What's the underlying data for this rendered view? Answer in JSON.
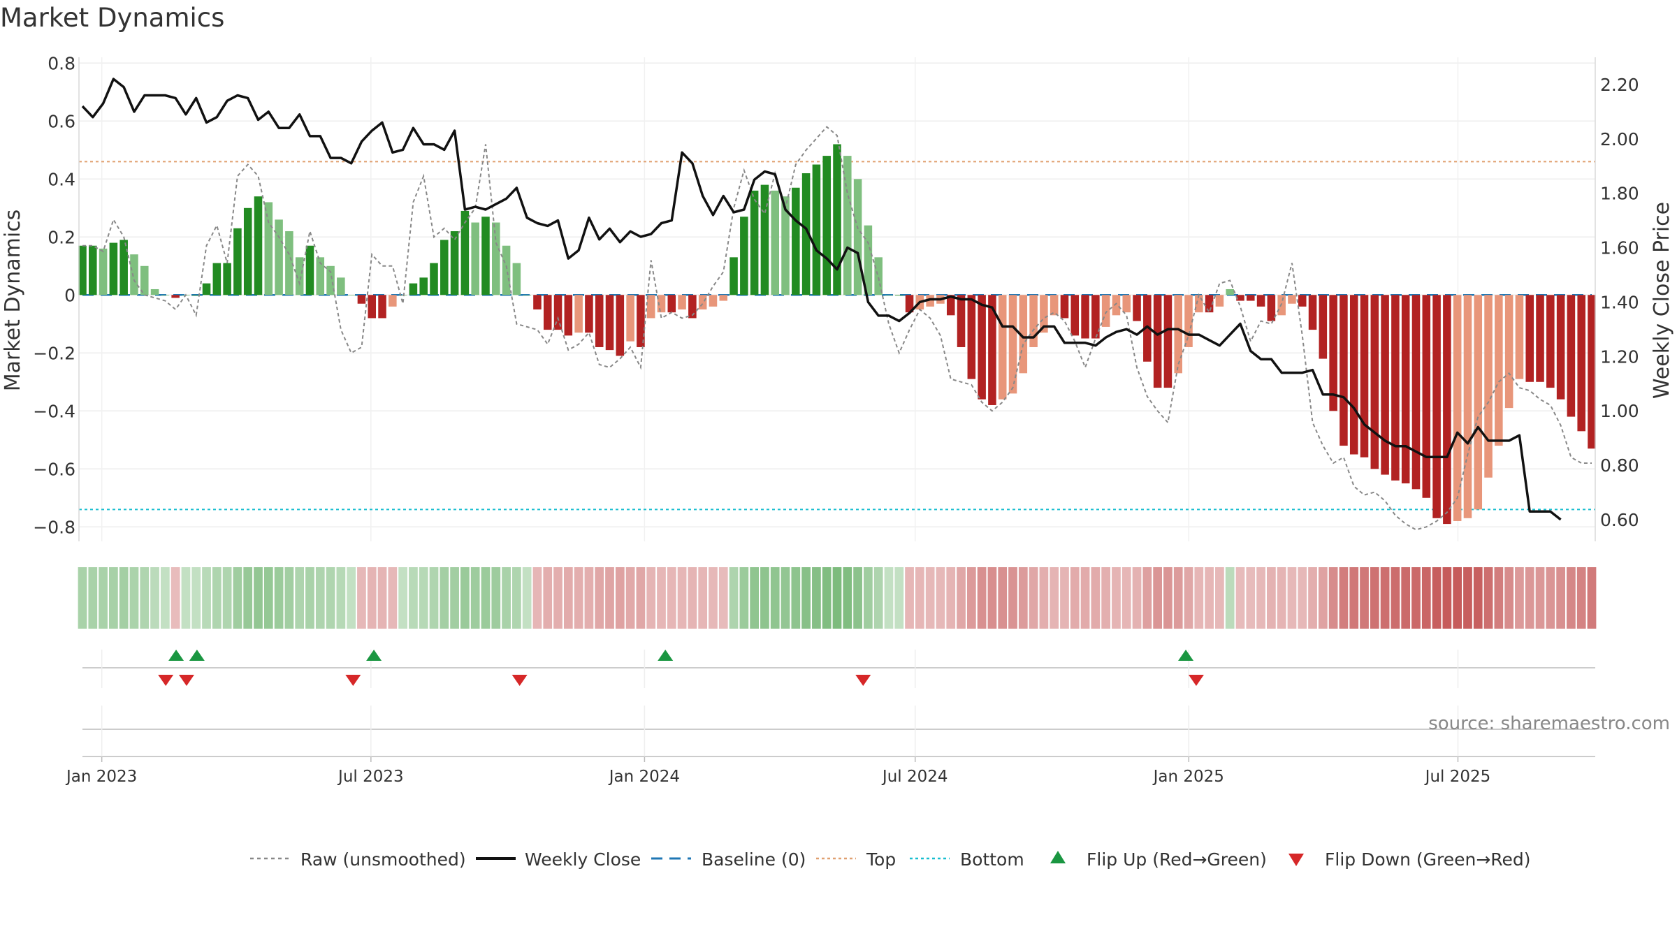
{
  "chart_data": {
    "type": "bar",
    "title": "Market Dynamics",
    "ylabel": "Market Dynamics",
    "ylabel_right": "Weekly Close Price",
    "ylim": [
      -0.85,
      0.82
    ],
    "ylim_right": [
      0.52,
      2.3
    ],
    "yticks": [
      0.8,
      0.6,
      0.4,
      0.2,
      0,
      -0.2,
      -0.4,
      -0.6,
      -0.8
    ],
    "yticks_right": [
      2.2,
      2.0,
      1.8,
      1.6,
      1.4,
      1.2,
      1.0,
      0.8,
      0.6
    ],
    "x_start": "2022-12-19",
    "x_end": "2025-09-29",
    "xticks": [
      "Jan 2023",
      "Jul 2023",
      "Jan 2024",
      "Jul 2024",
      "Jan 2025",
      "Jul 2025"
    ],
    "xtick_dates": [
      "2023-01-01",
      "2023-07-01",
      "2024-01-01",
      "2024-07-01",
      "2025-01-01",
      "2025-07-01"
    ],
    "top_level": 0.46,
    "bottom_level": -0.74,
    "baseline": 0,
    "grid": true,
    "legend_position": "bottom",
    "source": "source: sharemaestro.com",
    "legend": [
      "Raw (unsmoothed)",
      "Weekly Close",
      "Baseline (0)",
      "Top",
      "Bottom",
      "Flip Up (Red→Green)",
      "Flip Down (Green→Red)"
    ],
    "colors": {
      "strong_green": "#228b22",
      "light_green": "#7fbf7f",
      "strong_red": "#b22222",
      "light_red": "#e8967a",
      "close": "#111111",
      "raw": "#888888",
      "baseline": "#1f77b4",
      "top": "#e0a070",
      "bottom": "#17becf",
      "flip_up": "#1a9641",
      "flip_down": "#d62728"
    },
    "series": [
      {
        "name": "Market Dynamics",
        "values": [
          0.17,
          0.17,
          0.16,
          0.18,
          0.19,
          0.14,
          0.1,
          0.02,
          0.0,
          -0.01,
          0.0,
          0.0,
          0.04,
          0.11,
          0.11,
          0.23,
          0.3,
          0.34,
          0.32,
          0.26,
          0.22,
          0.13,
          0.17,
          0.13,
          0.1,
          0.06,
          0.0,
          -0.03,
          -0.08,
          -0.08,
          -0.04,
          0.0,
          0.04,
          0.06,
          0.11,
          0.19,
          0.22,
          0.29,
          0.25,
          0.27,
          0.25,
          0.17,
          0.11,
          0.0,
          -0.05,
          -0.12,
          -0.12,
          -0.14,
          -0.13,
          -0.13,
          -0.18,
          -0.19,
          -0.21,
          -0.16,
          -0.18,
          -0.08,
          -0.06,
          -0.06,
          -0.05,
          -0.08,
          -0.05,
          -0.04,
          -0.02,
          0.13,
          0.27,
          0.36,
          0.38,
          0.36,
          0.34,
          0.37,
          0.42,
          0.45,
          0.48,
          0.52,
          0.48,
          0.4,
          0.24,
          0.13,
          0.0,
          0.0,
          -0.06,
          -0.05,
          -0.04,
          -0.03,
          -0.07,
          -0.18,
          -0.29,
          -0.36,
          -0.38,
          -0.36,
          -0.34,
          -0.27,
          -0.18,
          -0.13,
          -0.07,
          -0.08,
          -0.14,
          -0.15,
          -0.15,
          -0.11,
          -0.07,
          -0.06,
          -0.09,
          -0.23,
          -0.32,
          -0.32,
          -0.27,
          -0.18,
          -0.06,
          -0.06,
          -0.04,
          0.02,
          -0.02,
          -0.02,
          -0.04,
          -0.09,
          -0.07,
          -0.03,
          -0.04,
          -0.12,
          -0.22,
          -0.4,
          -0.52,
          -0.55,
          -0.56,
          -0.6,
          -0.62,
          -0.64,
          -0.65,
          -0.67,
          -0.7,
          -0.77,
          -0.79,
          -0.78,
          -0.77,
          -0.74,
          -0.63,
          -0.52,
          -0.39,
          -0.29,
          -0.3,
          -0.3,
          -0.32,
          -0.36,
          -0.42,
          -0.47,
          -0.53
        ]
      },
      {
        "name": "Raw (unsmoothed)",
        "values": [
          0.17,
          0.17,
          0.15,
          0.26,
          0.2,
          0.05,
          0.0,
          -0.01,
          -0.02,
          -0.05,
          0.0,
          -0.07,
          0.17,
          0.24,
          0.11,
          0.41,
          0.45,
          0.41,
          0.25,
          0.2,
          0.14,
          0.04,
          0.22,
          0.11,
          0.08,
          -0.12,
          -0.2,
          -0.18,
          0.14,
          0.1,
          0.1,
          -0.03,
          0.32,
          0.41,
          0.2,
          0.23,
          0.19,
          0.25,
          0.3,
          0.52,
          0.18,
          0.1,
          -0.1,
          -0.11,
          -0.12,
          -0.17,
          -0.08,
          -0.19,
          -0.17,
          -0.13,
          -0.24,
          -0.25,
          -0.22,
          -0.18,
          -0.25,
          0.12,
          -0.08,
          -0.06,
          -0.08,
          -0.07,
          -0.03,
          0.03,
          0.08,
          0.3,
          0.43,
          0.33,
          0.28,
          0.42,
          0.3,
          0.45,
          0.5,
          0.54,
          0.58,
          0.55,
          0.35,
          0.23,
          0.18,
          0.06,
          -0.1,
          -0.2,
          -0.12,
          -0.05,
          -0.08,
          -0.14,
          -0.29,
          -0.3,
          -0.31,
          -0.37,
          -0.4,
          -0.37,
          -0.32,
          -0.17,
          -0.12,
          -0.08,
          -0.06,
          -0.09,
          -0.16,
          -0.25,
          -0.15,
          -0.06,
          -0.03,
          -0.07,
          -0.25,
          -0.35,
          -0.4,
          -0.44,
          -0.24,
          -0.14,
          0.0,
          -0.06,
          0.04,
          0.05,
          -0.04,
          -0.16,
          -0.09,
          -0.1,
          -0.03,
          0.11,
          -0.14,
          -0.44,
          -0.52,
          -0.58,
          -0.56,
          -0.66,
          -0.69,
          -0.68,
          -0.71,
          -0.76,
          -0.79,
          -0.81,
          -0.8,
          -0.78,
          -0.75,
          -0.7,
          -0.55,
          -0.42,
          -0.37,
          -0.3,
          -0.27,
          -0.32,
          -0.33,
          -0.36,
          -0.38,
          -0.45,
          -0.56,
          -0.58,
          -0.58
        ]
      },
      {
        "name": "Weekly Close",
        "axis": "right",
        "values": [
          2.12,
          2.08,
          2.13,
          2.22,
          2.19,
          2.1,
          2.16,
          2.16,
          2.16,
          2.15,
          2.09,
          2.15,
          2.06,
          2.08,
          2.14,
          2.16,
          2.15,
          2.07,
          2.1,
          2.04,
          2.04,
          2.09,
          2.01,
          2.01,
          1.93,
          1.93,
          1.91,
          1.99,
          2.03,
          2.06,
          1.95,
          1.96,
          2.04,
          1.98,
          1.98,
          1.96,
          2.03,
          1.74,
          1.75,
          1.74,
          1.76,
          1.78,
          1.82,
          1.71,
          1.69,
          1.68,
          1.7,
          1.56,
          1.59,
          1.71,
          1.63,
          1.67,
          1.62,
          1.66,
          1.64,
          1.65,
          1.69,
          1.7,
          1.95,
          1.91,
          1.79,
          1.72,
          1.79,
          1.73,
          1.74,
          1.85,
          1.88,
          1.87,
          1.74,
          1.7,
          1.67,
          1.59,
          1.56,
          1.52,
          1.6,
          1.58,
          1.4,
          1.35,
          1.35,
          1.33,
          1.36,
          1.4,
          1.41,
          1.41,
          1.42,
          1.41,
          1.41,
          1.39,
          1.38,
          1.31,
          1.31,
          1.27,
          1.27,
          1.31,
          1.31,
          1.25,
          1.25,
          1.25,
          1.24,
          1.27,
          1.29,
          1.3,
          1.28,
          1.31,
          1.28,
          1.3,
          1.3,
          1.28,
          1.28,
          1.26,
          1.24,
          1.28,
          1.32,
          1.22,
          1.19,
          1.19,
          1.14,
          1.14,
          1.14,
          1.15,
          1.06,
          1.06,
          1.05,
          1.01,
          0.95,
          0.92,
          0.89,
          0.87,
          0.87,
          0.85,
          0.83,
          0.83,
          0.83,
          0.92,
          0.88,
          0.94,
          0.89,
          0.89,
          0.89,
          0.91,
          0.63,
          0.63,
          0.63,
          0.6
        ]
      }
    ],
    "flip_up_dates": [
      "2023-02-20",
      "2023-03-06",
      "2023-07-03",
      "2024-01-15",
      "2024-12-30"
    ],
    "flip_down_dates": [
      "2023-02-13",
      "2023-02-27",
      "2023-06-19",
      "2023-10-09",
      "2024-05-27",
      "2025-01-06"
    ]
  }
}
